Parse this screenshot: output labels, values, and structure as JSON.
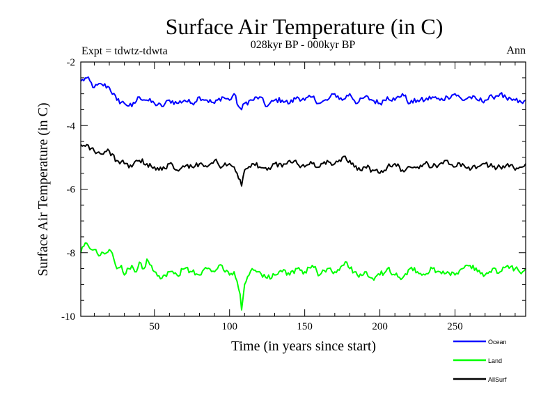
{
  "chart_data": {
    "type": "line",
    "title": "Surface Air Temperature (in C)",
    "subtitle": "028kyr BP - 000kyr BP",
    "experiment_label": "Expt = tdwtz-tdwta",
    "season_label": "Ann",
    "xlabel": "Time (in years since start)",
    "ylabel": "Surface Air Temperature (in C)",
    "xlim": [
      1,
      297
    ],
    "ylim": [
      -10,
      -2
    ],
    "xticks": [
      50,
      100,
      150,
      200,
      250
    ],
    "xtick_labels": [
      "50",
      "100",
      "150",
      "200",
      "250"
    ],
    "yticks": [
      -10,
      -8,
      -6,
      -4,
      -2
    ],
    "ytick_labels": [
      "-10",
      "-8",
      "-6",
      "-4",
      "-2"
    ],
    "legend_position": "bottom-right",
    "series": [
      {
        "name": "Ocean",
        "color": "#0000ff",
        "x": [
          1,
          5,
          10,
          15,
          20,
          25,
          30,
          35,
          40,
          45,
          50,
          55,
          60,
          65,
          70,
          75,
          80,
          85,
          90,
          95,
          100,
          103,
          106,
          108,
          110,
          115,
          120,
          125,
          130,
          135,
          140,
          145,
          150,
          155,
          160,
          165,
          170,
          175,
          180,
          185,
          190,
          195,
          200,
          205,
          210,
          215,
          220,
          225,
          230,
          235,
          240,
          245,
          250,
          255,
          260,
          265,
          270,
          275,
          280,
          285,
          290,
          295,
          297
        ],
        "values": [
          -2.6,
          -2.5,
          -2.8,
          -2.7,
          -2.8,
          -3.2,
          -3.3,
          -3.4,
          -3.1,
          -3.2,
          -3.3,
          -3.4,
          -3.2,
          -3.3,
          -3.2,
          -3.3,
          -3.1,
          -3.2,
          -3.3,
          -3.1,
          -3.2,
          -3.0,
          -3.4,
          -3.5,
          -3.3,
          -3.2,
          -3.1,
          -3.4,
          -3.2,
          -3.2,
          -3.3,
          -3.1,
          -3.2,
          -3.1,
          -3.3,
          -3.2,
          -3.0,
          -3.2,
          -3.0,
          -3.3,
          -3.1,
          -3.2,
          -3.3,
          -3.1,
          -3.2,
          -3.0,
          -3.3,
          -3.2,
          -3.2,
          -3.1,
          -3.2,
          -3.1,
          -3.0,
          -3.2,
          -3.1,
          -3.2,
          -3.2,
          -3.1,
          -3.0,
          -3.2,
          -3.2,
          -3.3,
          -3.2
        ]
      },
      {
        "name": "Land",
        "color": "#00ff00",
        "x": [
          1,
          3,
          5,
          8,
          10,
          13,
          16,
          20,
          23,
          25,
          28,
          30,
          33,
          35,
          38,
          40,
          43,
          45,
          48,
          50,
          55,
          60,
          65,
          70,
          75,
          80,
          85,
          90,
          95,
          100,
          103,
          105,
          107,
          108,
          110,
          113,
          115,
          120,
          125,
          130,
          135,
          140,
          145,
          150,
          155,
          160,
          165,
          170,
          175,
          178,
          180,
          185,
          190,
          195,
          200,
          205,
          210,
          215,
          220,
          225,
          230,
          235,
          240,
          245,
          250,
          255,
          260,
          265,
          270,
          275,
          280,
          285,
          290,
          295,
          297
        ],
        "values": [
          -8.0,
          -7.8,
          -7.7,
          -7.9,
          -7.9,
          -8.1,
          -8.0,
          -7.9,
          -8.2,
          -8.5,
          -8.4,
          -8.7,
          -8.5,
          -8.4,
          -8.6,
          -8.3,
          -8.5,
          -8.2,
          -8.4,
          -8.6,
          -8.8,
          -8.6,
          -8.7,
          -8.5,
          -8.6,
          -8.7,
          -8.5,
          -8.6,
          -8.4,
          -8.7,
          -8.6,
          -8.9,
          -9.3,
          -9.8,
          -9.0,
          -8.7,
          -8.5,
          -8.6,
          -8.8,
          -8.7,
          -8.6,
          -8.7,
          -8.5,
          -8.6,
          -8.4,
          -8.7,
          -8.5,
          -8.6,
          -8.4,
          -8.3,
          -8.5,
          -8.7,
          -8.6,
          -8.8,
          -8.7,
          -8.5,
          -8.7,
          -8.8,
          -8.5,
          -8.6,
          -8.7,
          -8.5,
          -8.6,
          -8.6,
          -8.7,
          -8.5,
          -8.4,
          -8.6,
          -8.7,
          -8.5,
          -8.6,
          -8.4,
          -8.5,
          -8.6,
          -8.5
        ]
      },
      {
        "name": "AllSurf",
        "color": "#000000",
        "x": [
          1,
          5,
          10,
          15,
          20,
          25,
          30,
          35,
          40,
          45,
          50,
          55,
          60,
          65,
          70,
          75,
          80,
          85,
          90,
          95,
          100,
          103,
          105,
          107,
          108,
          110,
          115,
          120,
          125,
          130,
          135,
          140,
          145,
          150,
          155,
          160,
          165,
          170,
          175,
          180,
          185,
          190,
          195,
          200,
          205,
          210,
          215,
          220,
          225,
          230,
          235,
          240,
          245,
          250,
          255,
          260,
          265,
          270,
          275,
          280,
          285,
          290,
          295,
          297
        ],
        "values": [
          -4.6,
          -4.6,
          -4.8,
          -4.9,
          -4.8,
          -5.1,
          -5.2,
          -5.3,
          -5.1,
          -5.2,
          -5.3,
          -5.4,
          -5.2,
          -5.4,
          -5.3,
          -5.3,
          -5.2,
          -5.3,
          -5.1,
          -5.3,
          -5.2,
          -5.3,
          -5.5,
          -5.7,
          -5.9,
          -5.4,
          -5.2,
          -5.3,
          -5.4,
          -5.2,
          -5.3,
          -5.1,
          -5.2,
          -5.3,
          -5.2,
          -5.3,
          -5.1,
          -5.2,
          -5.0,
          -5.1,
          -5.4,
          -5.3,
          -5.4,
          -5.5,
          -5.3,
          -5.2,
          -5.4,
          -5.3,
          -5.3,
          -5.2,
          -5.3,
          -5.2,
          -5.1,
          -5.3,
          -5.2,
          -5.4,
          -5.3,
          -5.2,
          -5.3,
          -5.3,
          -5.2,
          -5.4,
          -5.3,
          -5.2
        ]
      }
    ]
  }
}
